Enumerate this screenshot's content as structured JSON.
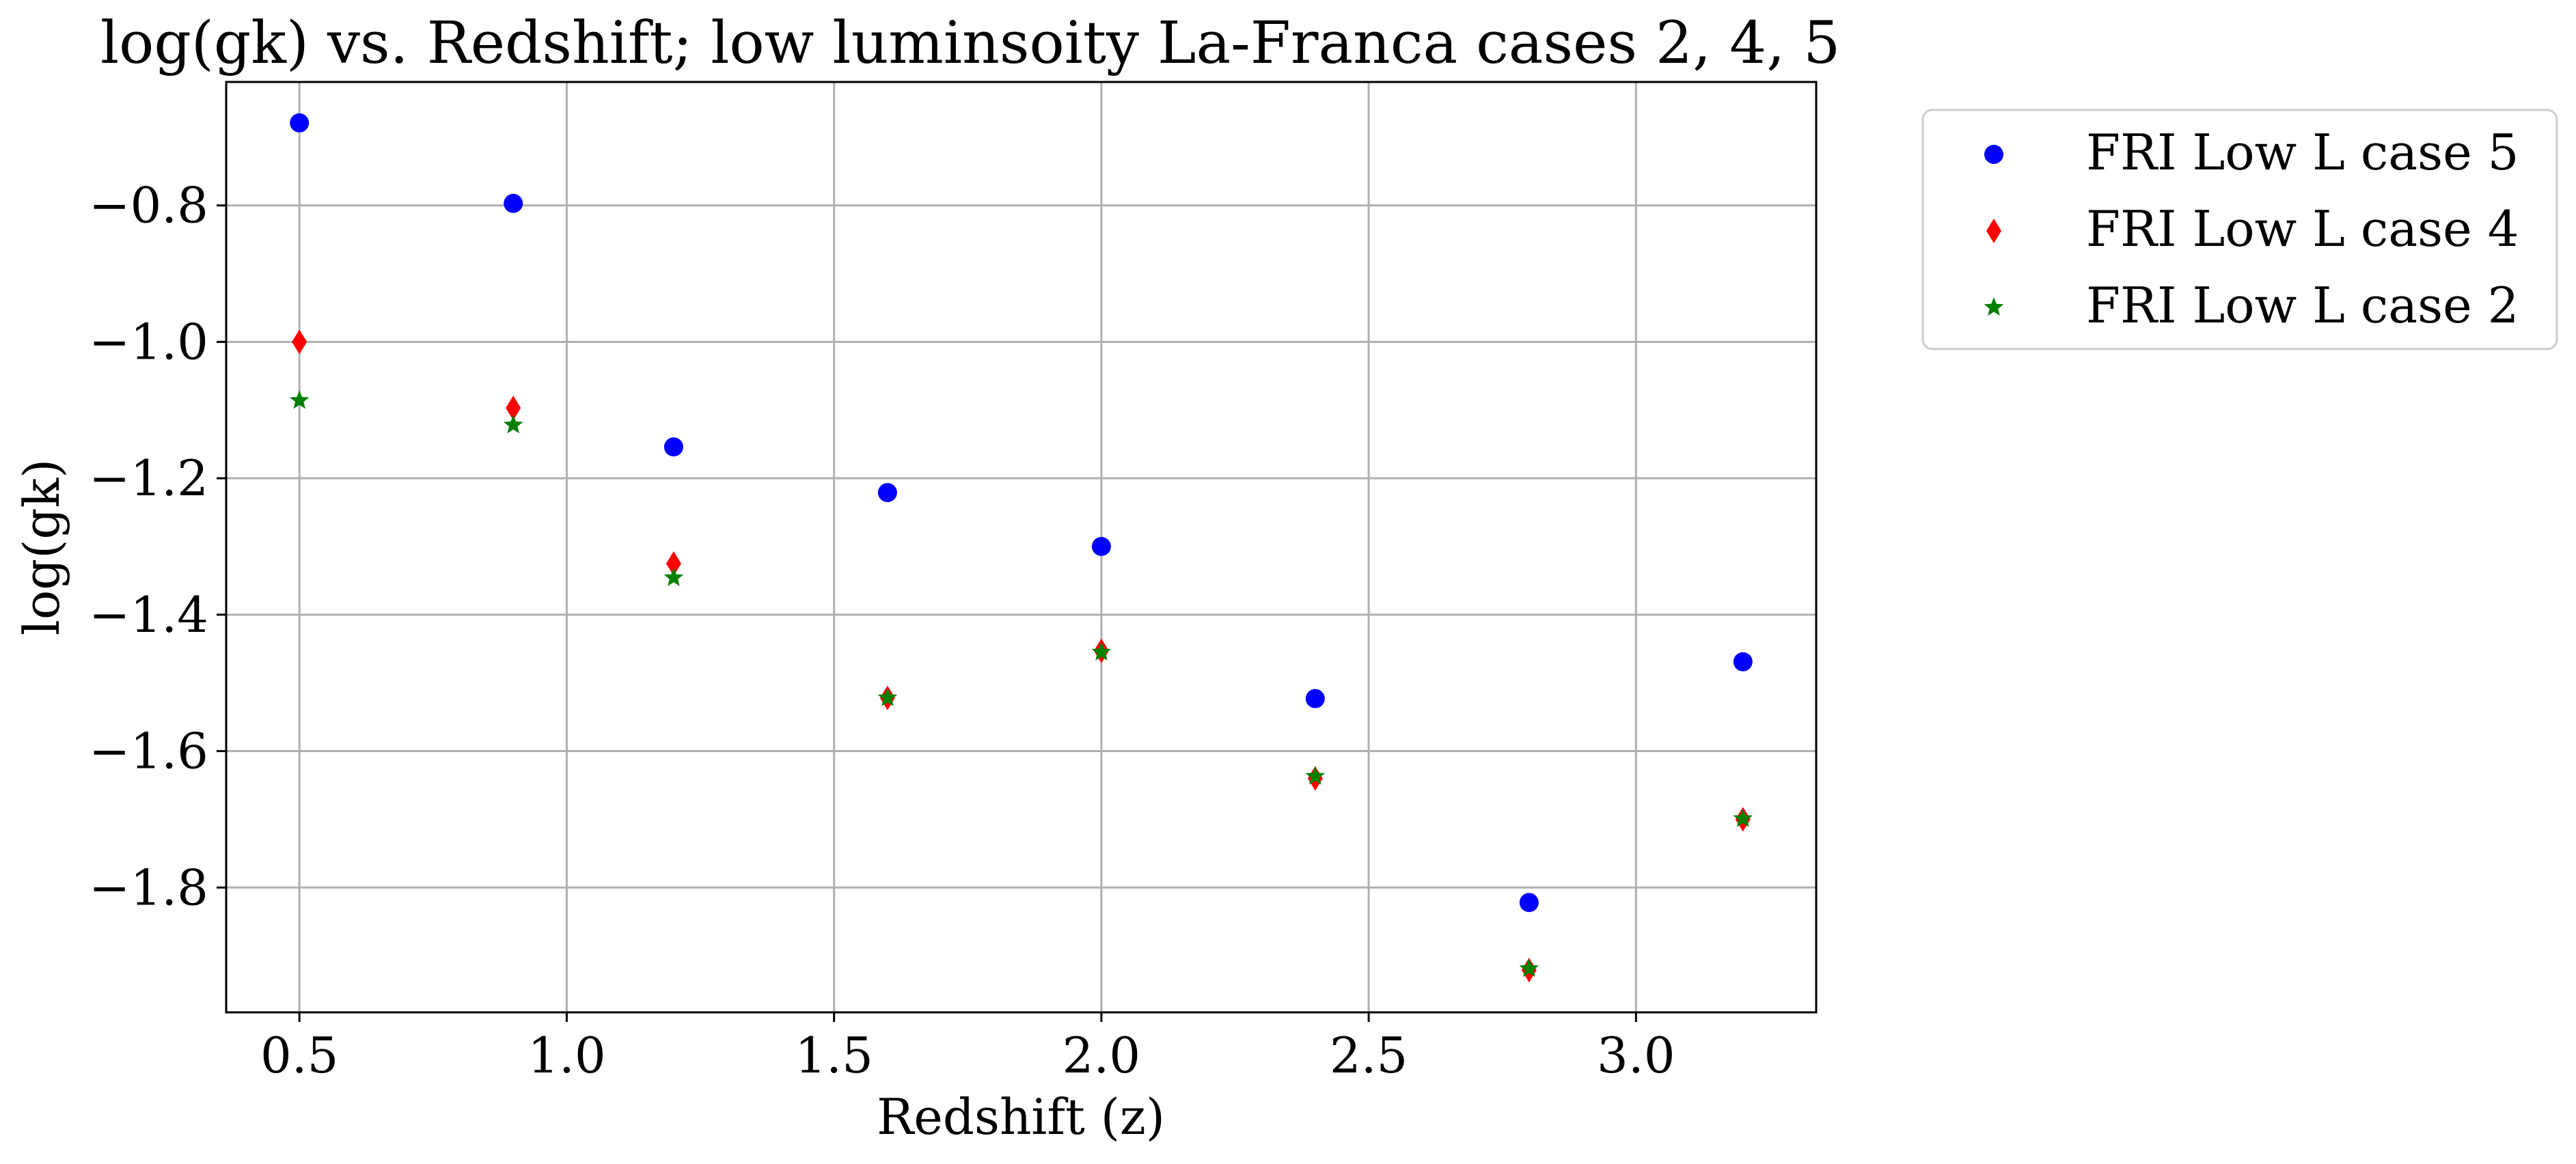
{
  "chart_data": {
    "type": "scatter",
    "title": "log(gk) vs. Redshift; low luminsoity La-Franca cases 2, 4, 5",
    "xlabel": "Redshift (z)",
    "ylabel": "log(gk)",
    "xlim": [
      0.363,
      3.337
    ],
    "ylim": [
      -1.983,
      -0.619
    ],
    "grid": true,
    "legend_position": "outside-top-right",
    "x_ticks": [
      "0.5",
      "1.0",
      "1.5",
      "2.0",
      "2.5",
      "3.0"
    ],
    "x_tick_values": [
      0.5,
      1.0,
      1.5,
      2.0,
      2.5,
      3.0
    ],
    "y_ticks": [
      "−1.8",
      "−1.6",
      "−1.4",
      "−1.2",
      "−1.0",
      "−0.8"
    ],
    "y_tick_values": [
      -1.8,
      -1.6,
      -1.4,
      -1.2,
      -1.0,
      -0.8
    ],
    "x": [
      0.5,
      0.9,
      1.2,
      1.6,
      2.0,
      2.4,
      2.8,
      3.2
    ],
    "series": [
      {
        "name": "FRI Low L case 5",
        "marker": "circle",
        "color": "#0000ff",
        "values": [
          -0.679,
          -0.797,
          -1.154,
          -1.221,
          -1.3,
          -1.523,
          -1.822,
          -1.469
        ]
      },
      {
        "name": "FRI Low L case 4",
        "marker": "diamond",
        "color": "#ff0000",
        "values": [
          -1.0,
          -1.097,
          -1.325,
          -1.522,
          -1.453,
          -1.64,
          -1.921,
          -1.7
        ]
      },
      {
        "name": "FRI Low L case 2",
        "marker": "star",
        "color": "#008000",
        "values": [
          -1.086,
          -1.122,
          -1.346,
          -1.522,
          -1.455,
          -1.637,
          -1.919,
          -1.699
        ]
      }
    ]
  }
}
